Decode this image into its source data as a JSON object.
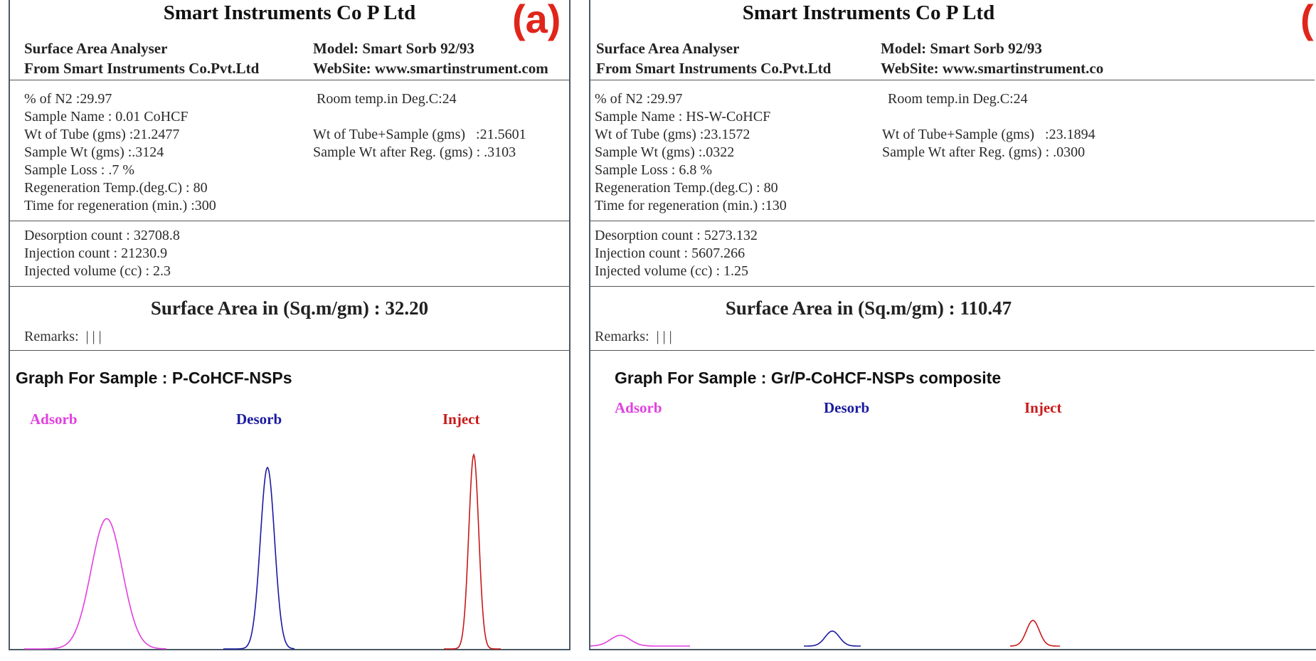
{
  "panels": [
    {
      "label": "(a)",
      "company": "Smart Instruments Co P Ltd",
      "header": {
        "analyser": "Surface Area Analyser",
        "model": "Model: Smart Sorb 92/93",
        "from": "From Smart Instruments Co.Pvt.Ltd",
        "website": "WebSite: www.smartinstrument.com"
      },
      "params": {
        "n2": "% of N2 :29.97",
        "room_temp": "Room temp.in Deg.C:24",
        "sample_name": "Sample Name : 0.01 CoHCF",
        "wt_tube": "Wt of Tube (gms) :21.2477",
        "wt_tube_sample": "Wt of Tube+Sample (gms)   :21.5601",
        "sample_wt": "Sample Wt (gms) :.3124",
        "sample_wt_after": "Sample Wt after Reg. (gms) : .3103",
        "sample_loss": "Sample Loss : .7 %",
        "regen_temp": "Regeneration Temp.(deg.C) : 80",
        "regen_time": "Time for regeneration (min.) :300"
      },
      "counts": {
        "desorption": "Desorption count : 32708.8",
        "injection": "Injection count : 21230.9",
        "injected_volume": "Injected volume (cc) : 2.3"
      },
      "surface_area": "Surface Area in (Sq.m/gm) : 32.20",
      "remarks": "Remarks:  | | |",
      "graph_title": "Graph For Sample : P-CoHCF-NSPs",
      "peaks": [
        {
          "name": "Adsorb",
          "color": "#e040e0",
          "height": 0.61
        },
        {
          "name": "Desorb",
          "color": "#1a1aa0",
          "height": 0.85
        },
        {
          "name": "Inject",
          "color": "#c81818",
          "height": 0.91
        }
      ]
    },
    {
      "label": "(",
      "company": "Smart Instruments Co P Ltd",
      "header": {
        "analyser": "Surface Area Analyser",
        "model": "Model: Smart Sorb 92/93",
        "from": "From Smart Instruments Co.Pvt.Ltd",
        "website": "WebSite: www.smartinstrument.co"
      },
      "params": {
        "n2": "% of N2 :29.97",
        "room_temp": "Room temp.in Deg.C:24",
        "sample_name": "Sample Name : HS-W-CoHCF",
        "wt_tube": "Wt of Tube (gms) :23.1572",
        "wt_tube_sample": "Wt of Tube+Sample (gms)   :23.1894",
        "sample_wt": "Sample Wt (gms) :.0322",
        "sample_wt_after": "Sample Wt after Reg. (gms) : .0300",
        "sample_loss": "Sample Loss : 6.8 %",
        "regen_temp": "Regeneration Temp.(deg.C) : 80",
        "regen_time": "Time for regeneration (min.) :130"
      },
      "counts": {
        "desorption": "Desorption count : 5273.132",
        "injection": "Injection count : 5607.266",
        "injected_volume": "Injected volume (cc) : 1.25"
      },
      "surface_area": "Surface Area in (Sq.m/gm) : 110.47",
      "remarks": "Remarks:  | | |",
      "graph_title": "Graph For Sample : Gr/P-CoHCF-NSPs composite",
      "peaks": [
        {
          "name": "Adsorb",
          "color": "#e040e0",
          "height": 0.05
        },
        {
          "name": "Desorb",
          "color": "#1a1aa0",
          "height": 0.07
        },
        {
          "name": "Inject",
          "color": "#c81818",
          "height": 0.12
        }
      ]
    }
  ]
}
